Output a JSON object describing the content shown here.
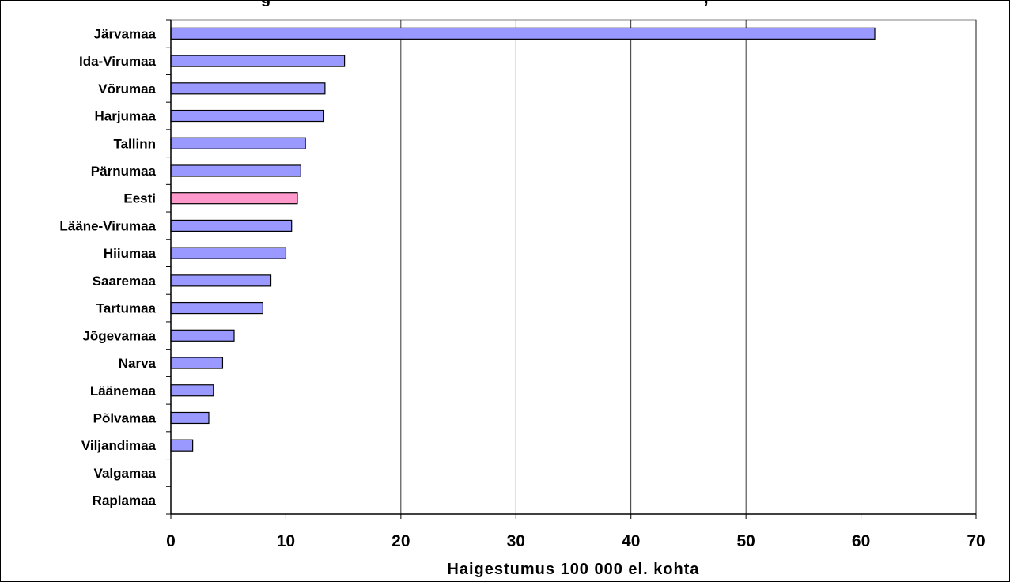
{
  "title_fragment": "g",
  "title_fragment_right": ",",
  "chart_data": {
    "type": "bar",
    "orientation": "horizontal",
    "categories": [
      "Järvamaa",
      "Ida-Virumaa",
      "Võrumaa",
      "Harjumaa",
      "Tallinn",
      "Pärnumaa",
      "Eesti",
      "Lääne-Virumaa",
      "Hiiumaa",
      "Saaremaa",
      "Tartumaa",
      "Jõgevamaa",
      "Narva",
      "Läänemaa",
      "Põlvamaa",
      "Viljandimaa",
      "Valgamaa",
      "Raplamaa"
    ],
    "values": [
      61.2,
      15.1,
      13.4,
      13.3,
      11.7,
      11.3,
      11.0,
      10.5,
      10.0,
      8.7,
      8.0,
      5.5,
      4.5,
      3.7,
      3.3,
      1.9,
      0,
      0
    ],
    "highlight_category": "Eesti",
    "xlabel": "Haigestumus 100 000 el. kohta",
    "ylabel": "",
    "xlim": [
      0,
      70
    ],
    "xticks": [
      0,
      10,
      20,
      30,
      40,
      50,
      60,
      70
    ],
    "grid": "vertical",
    "colors": {
      "bar": "#9999ff",
      "highlight": "#ff99cc",
      "outline": "#000000",
      "grid": "#000000"
    }
  }
}
